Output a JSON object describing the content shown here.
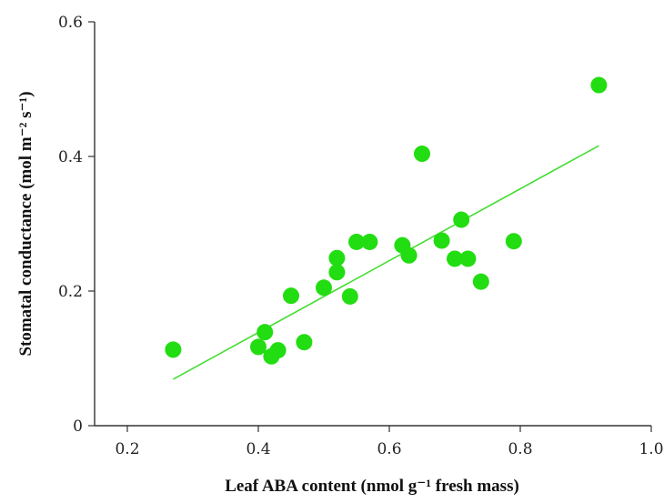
{
  "chart_data": {
    "type": "scatter",
    "xlabel": "Leaf ABA content (nmol g⁻¹ fresh mass)",
    "ylabel": "Stomatal conductance (mol m⁻² s⁻¹)",
    "xlim": [
      0.15,
      1.0
    ],
    "ylim": [
      0,
      0.6
    ],
    "x_ticks": [
      0.2,
      0.4,
      0.6,
      0.8,
      1.0
    ],
    "x_tick_labels": [
      "0.2",
      "0.4",
      "0.6",
      "0.8",
      "1.0"
    ],
    "y_ticks": [
      0,
      0.2,
      0.4,
      0.6
    ],
    "y_tick_labels": [
      "0",
      "0.2",
      "0.4",
      "0.6"
    ],
    "grid": false,
    "point_color": "#22dd11",
    "line_color": "#44dd33",
    "series": [
      {
        "points": [
          [
            0.27,
            0.113
          ],
          [
            0.4,
            0.117
          ],
          [
            0.41,
            0.139
          ],
          [
            0.42,
            0.103
          ],
          [
            0.43,
            0.112
          ],
          [
            0.45,
            0.193
          ],
          [
            0.47,
            0.124
          ],
          [
            0.5,
            0.205
          ],
          [
            0.52,
            0.228
          ],
          [
            0.52,
            0.249
          ],
          [
            0.54,
            0.192
          ],
          [
            0.55,
            0.273
          ],
          [
            0.57,
            0.273
          ],
          [
            0.62,
            0.268
          ],
          [
            0.63,
            0.253
          ],
          [
            0.65,
            0.404
          ],
          [
            0.68,
            0.275
          ],
          [
            0.7,
            0.248
          ],
          [
            0.71,
            0.306
          ],
          [
            0.72,
            0.248
          ],
          [
            0.74,
            0.214
          ],
          [
            0.79,
            0.274
          ],
          [
            0.92,
            0.506
          ]
        ]
      }
    ],
    "trendline": {
      "x": [
        0.27,
        0.92
      ],
      "y": [
        0.069,
        0.416
      ]
    }
  }
}
